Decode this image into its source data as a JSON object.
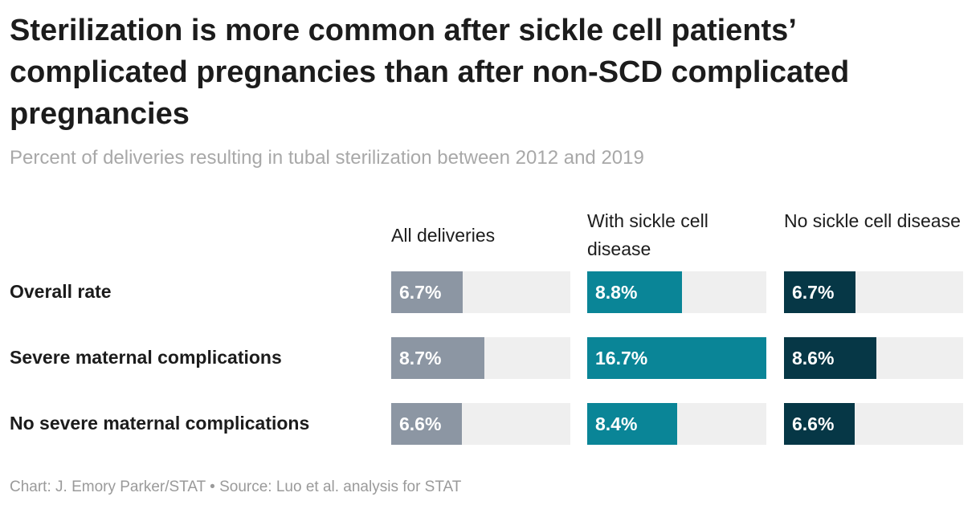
{
  "title": "Sterilization is more common after sickle cell patients’ complicated pregnancies than after non-SCD complicated pregnancies",
  "subtitle": "Percent of deliveries resulting in tubal sterilization between 2012 and 2019",
  "footer": "Chart: J. Emory Parker/STAT • Source: Luo et al. analysis for STAT",
  "colors": {
    "all_deliveries": "#8c96a3",
    "with_scd": "#0a8597",
    "no_scd": "#063746",
    "track": "#efefef"
  },
  "chart_data": {
    "type": "bar",
    "title": "Sterilization is more common after sickle cell patients’ complicated pregnancies than after non-SCD complicated pregnancies",
    "subtitle": "Percent of deliveries resulting in tubal sterilization between 2012 and 2019",
    "categories": [
      "Overall rate",
      "Severe maternal complications",
      "No severe maternal complications"
    ],
    "series": [
      {
        "name": "All deliveries",
        "values": [
          6.7,
          8.7,
          6.6
        ],
        "labels": [
          "6.7%",
          "8.7%",
          "6.6%"
        ],
        "color": "#8c96a3"
      },
      {
        "name": "With sickle cell disease",
        "values": [
          8.8,
          16.7,
          8.4
        ],
        "labels": [
          "8.8%",
          "16.7%",
          "8.4%"
        ],
        "color": "#0a8597"
      },
      {
        "name": "No sickle cell disease",
        "values": [
          6.7,
          8.6,
          6.6
        ],
        "labels": [
          "6.7%",
          "8.6%",
          "6.6%"
        ],
        "color": "#063746"
      }
    ],
    "xlim": [
      0,
      16.7
    ],
    "grid": false
  }
}
